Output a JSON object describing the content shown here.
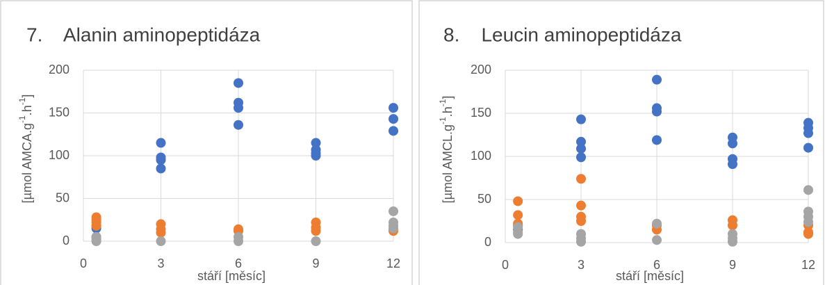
{
  "chart_data": [
    {
      "type": "scatter",
      "title": "7.    Alanin aminopeptidáza",
      "xlabel": "stáří [měsíc]",
      "ylabel": [
        "[µmol AMCA.g",
        "-1",
        ".h",
        "-1",
        "]"
      ],
      "xlim": [
        0,
        12
      ],
      "xticks": [
        0,
        3,
        6,
        9,
        12
      ],
      "ylim": [
        0,
        200
      ],
      "yticks": [
        0,
        50,
        100,
        150,
        200
      ],
      "grid": true,
      "series": [
        {
          "color": "#4472c4",
          "x": [
            0.5,
            0.5,
            0.5,
            3,
            3,
            3,
            3,
            6,
            6,
            6,
            6,
            9,
            9,
            9,
            9,
            12,
            12,
            12
          ],
          "values": [
            15,
            18,
            5,
            115,
            98,
            95,
            85,
            185,
            162,
            156,
            136,
            115,
            107,
            103,
            100,
            156,
            143,
            129
          ]
        },
        {
          "color": "#ed7d31",
          "x": [
            0.5,
            0.5,
            0.5,
            0.5,
            3,
            3,
            3,
            6,
            6,
            9,
            9,
            9,
            12,
            12
          ],
          "values": [
            28,
            25,
            22,
            18,
            20,
            14,
            10,
            14,
            12,
            22,
            16,
            12,
            12,
            14
          ]
        },
        {
          "color": "#a5a5a5",
          "x": [
            0.5,
            0.5,
            0.5,
            3,
            6,
            6,
            9,
            12,
            12,
            12,
            12
          ],
          "values": [
            5,
            0,
            2,
            0,
            5,
            0,
            0,
            35,
            22,
            18,
            15
          ]
        }
      ]
    },
    {
      "type": "scatter",
      "title": "8.    Leucin aminopeptidáza",
      "xlabel": "stáří [měsíc]",
      "ylabel": [
        "[µmol AMCL.g",
        "-1",
        ".h",
        "-1",
        "]"
      ],
      "xlim": [
        0,
        12
      ],
      "xticks": [
        0,
        3,
        6,
        9,
        12
      ],
      "ylim": [
        0,
        200
      ],
      "yticks": [
        0,
        50,
        100,
        150,
        200
      ],
      "grid": true,
      "series": [
        {
          "color": "#4472c4",
          "x": [
            0.5,
            0.5,
            3,
            3,
            3,
            3,
            6,
            6,
            6,
            6,
            9,
            9,
            9,
            9,
            12,
            12,
            12,
            12
          ],
          "values": [
            20,
            15,
            143,
            117,
            109,
            99,
            189,
            156,
            152,
            119,
            122,
            115,
            97,
            91,
            139,
            133,
            127,
            110
          ]
        },
        {
          "color": "#ed7d31",
          "x": [
            0.5,
            0.5,
            0.5,
            3,
            3,
            3,
            3,
            6,
            6,
            9,
            9,
            12,
            12,
            12
          ],
          "values": [
            48,
            32,
            22,
            74,
            43,
            30,
            25,
            15,
            20,
            26,
            20,
            10,
            12,
            20
          ]
        },
        {
          "color": "#a5a5a5",
          "x": [
            0.5,
            0.5,
            0.5,
            3,
            3,
            3,
            6,
            6,
            9,
            9,
            9,
            12,
            12,
            12,
            12
          ],
          "values": [
            18,
            12,
            10,
            10,
            5,
            1,
            22,
            3,
            10,
            5,
            1,
            61,
            36,
            30,
            24
          ]
        }
      ]
    }
  ]
}
